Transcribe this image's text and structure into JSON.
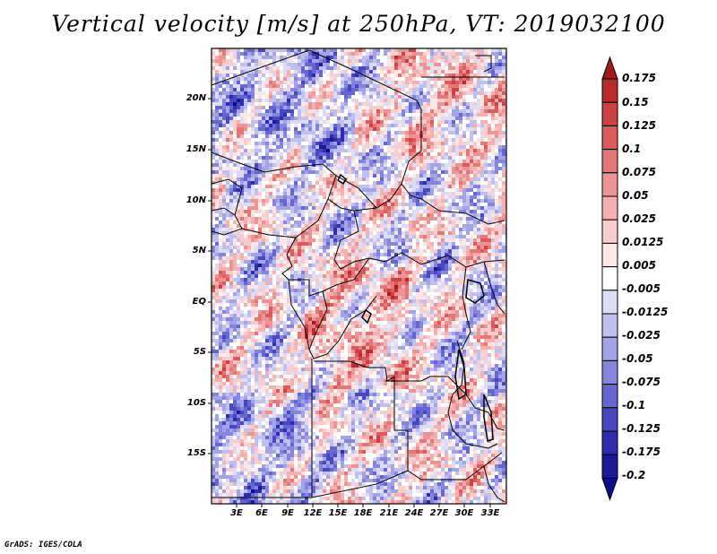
{
  "title": "Vertical velocity [m/s] at 250hPa, VT: 2019032100",
  "credit": "GrADS: IGES/COLA",
  "map": {
    "lat_labels": [
      "20N",
      "15N",
      "10N",
      "5N",
      "EQ",
      "5S",
      "10S",
      "15S"
    ],
    "lon_labels": [
      "3E",
      "6E",
      "9E",
      "12E",
      "15E",
      "18E",
      "21E",
      "24E",
      "27E",
      "30E",
      "33E"
    ]
  },
  "colorbar": {
    "labels": [
      "0.175",
      "0.15",
      "0.125",
      "0.1",
      "0.075",
      "0.05",
      "0.025",
      "0.0125",
      "0.005",
      "-0.005",
      "-0.0125",
      "-0.025",
      "-0.05",
      "-0.075",
      "-0.1",
      "-0.125",
      "-0.175",
      "-0.2"
    ],
    "colors": [
      "#a31a1a",
      "#bb2b2b",
      "#cf4141",
      "#dc5a5a",
      "#e57676",
      "#ee9393",
      "#f5b0b0",
      "#f9cdcd",
      "#fde6e6",
      "#ffffff",
      "#dcdcf7",
      "#c0c0f0",
      "#a3a3e8",
      "#8585de",
      "#6666d2",
      "#4747c2",
      "#2d2db0",
      "#1a1a99",
      "#0d0d88"
    ]
  }
}
